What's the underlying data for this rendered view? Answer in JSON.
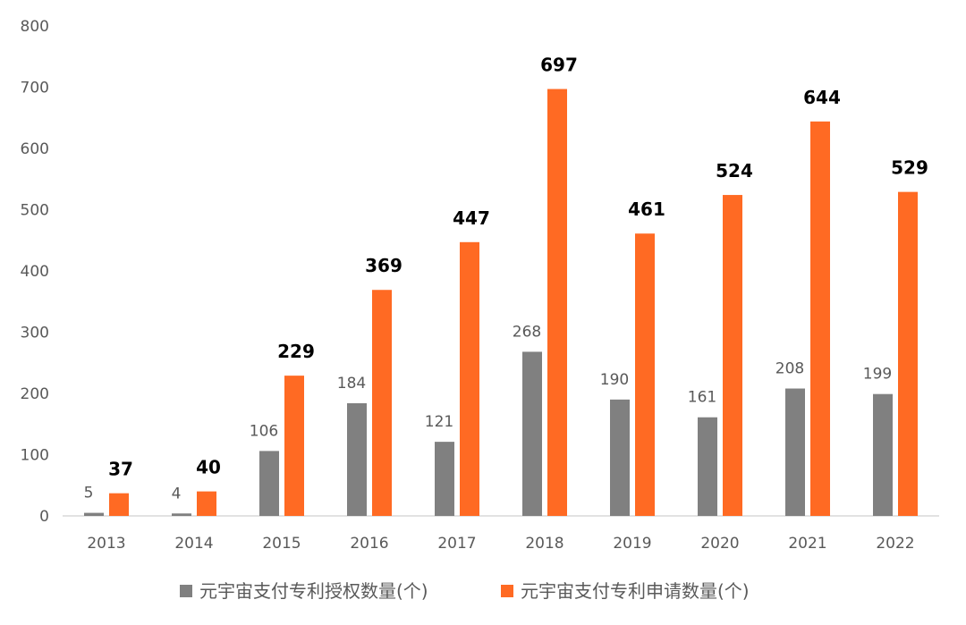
{
  "chart_data": {
    "type": "bar",
    "categories": [
      "2013",
      "2014",
      "2015",
      "2016",
      "2017",
      "2018",
      "2019",
      "2020",
      "2021",
      "2022"
    ],
    "series": [
      {
        "name": "元宇宙支付专利授权数量(个)",
        "color": "#808080",
        "values": [
          5,
          4,
          106,
          184,
          121,
          268,
          190,
          161,
          208,
          199
        ]
      },
      {
        "name": "元宇宙支付专利申请数量(个)",
        "color": "#FF6A23",
        "values": [
          37,
          40,
          229,
          369,
          447,
          697,
          461,
          524,
          644,
          529
        ]
      }
    ],
    "y_ticks": [
      "0",
      "100",
      "200",
      "300",
      "400",
      "500",
      "600",
      "700",
      "800"
    ],
    "ylim": [
      0,
      800
    ],
    "title": "",
    "xlabel": "",
    "ylabel": "",
    "grid": false,
    "legend_position": "bottom"
  }
}
